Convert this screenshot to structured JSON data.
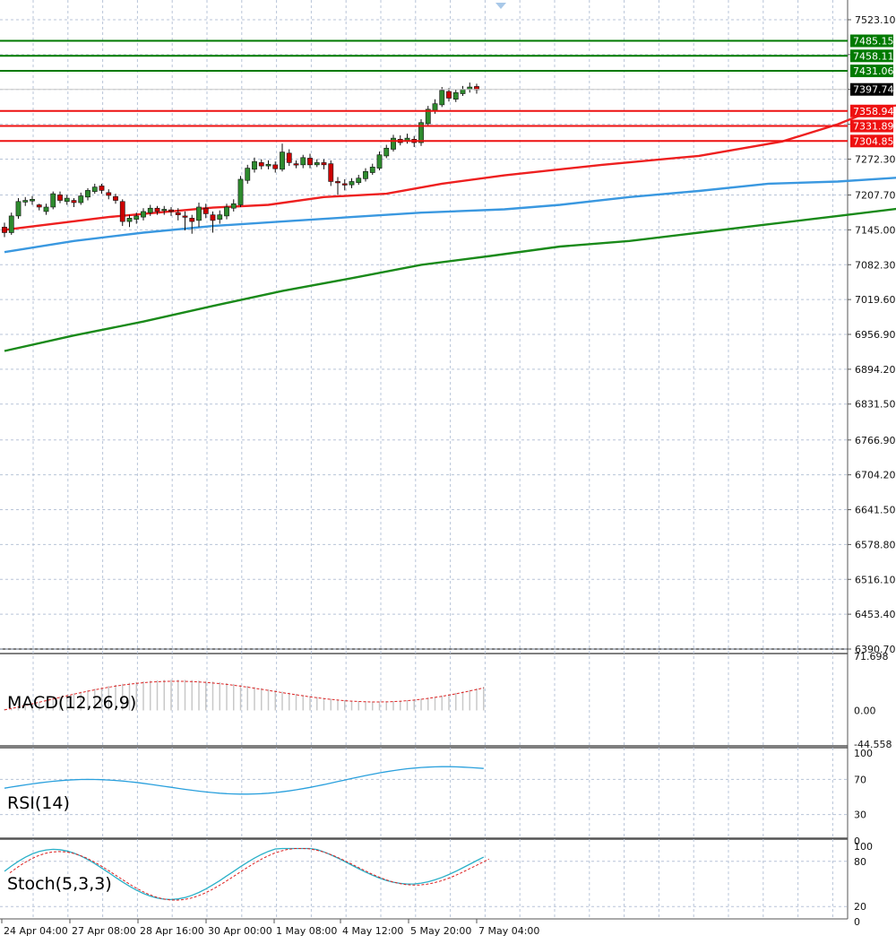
{
  "chart_data": [
    {
      "id": "price",
      "type": "candlestick",
      "y_ticks": [
        "7523.10",
        "7460.40",
        "7397.74",
        "7335.00",
        "7272.30",
        "7207.70",
        "7145.00",
        "7082.30",
        "7019.60",
        "6956.90",
        "6894.20",
        "6831.50",
        "6766.90",
        "6704.20",
        "6641.50",
        "6578.80",
        "6516.10",
        "6453.40",
        "6390.70"
      ],
      "ylim": [
        6390.7,
        7523.1
      ],
      "current_price": 7397.74,
      "resistance_levels": [
        7485.15,
        7458.11,
        7431.06
      ],
      "support_levels": [
        7358.94,
        7331.89,
        7304.85
      ],
      "resistance_labels": [
        "7485.15",
        "7458.11",
        "7431.06"
      ],
      "support_labels": [
        "7358.94",
        "7331.89",
        "7304.85"
      ],
      "current_price_label": "7397.74",
      "candles": [
        [
          7150,
          7140,
          7158,
          7132
        ],
        [
          7140,
          7170,
          7176,
          7136
        ],
        [
          7170,
          7196,
          7202,
          7165
        ],
        [
          7195,
          7198,
          7204,
          7188
        ],
        [
          7197,
          7200,
          7206,
          7190
        ],
        [
          7190,
          7186,
          7192,
          7180
        ],
        [
          7178,
          7186,
          7192,
          7172
        ],
        [
          7186,
          7210,
          7214,
          7182
        ],
        [
          7208,
          7198,
          7214,
          7193
        ],
        [
          7196,
          7202,
          7208,
          7190
        ],
        [
          7198,
          7194,
          7202,
          7186
        ],
        [
          7194,
          7206,
          7212,
          7190
        ],
        [
          7204,
          7216,
          7220,
          7198
        ],
        [
          7214,
          7222,
          7228,
          7210
        ],
        [
          7224,
          7216,
          7228,
          7210
        ],
        [
          7212,
          7207,
          7218,
          7200
        ],
        [
          7205,
          7198,
          7210,
          7192
        ],
        [
          7196,
          7160,
          7200,
          7152
        ],
        [
          7160,
          7166,
          7172,
          7150
        ],
        [
          7164,
          7170,
          7176,
          7156
        ],
        [
          7168,
          7178,
          7184,
          7162
        ],
        [
          7176,
          7184,
          7190,
          7170
        ],
        [
          7184,
          7178,
          7188,
          7172
        ],
        [
          7180,
          7182,
          7188,
          7172
        ],
        [
          7181,
          7178,
          7186,
          7170
        ],
        [
          7176,
          7172,
          7184,
          7162
        ],
        [
          7170,
          7168,
          7178,
          7144
        ],
        [
          7166,
          7160,
          7172,
          7138
        ],
        [
          7162,
          7186,
          7194,
          7150
        ],
        [
          7184,
          7174,
          7192,
          7166
        ],
        [
          7172,
          7162,
          7178,
          7140
        ],
        [
          7164,
          7172,
          7180,
          7156
        ],
        [
          7170,
          7186,
          7192,
          7164
        ],
        [
          7184,
          7192,
          7200,
          7178
        ],
        [
          7190,
          7236,
          7242,
          7186
        ],
        [
          7234,
          7256,
          7262,
          7228
        ],
        [
          7254,
          7268,
          7275,
          7248
        ],
        [
          7266,
          7260,
          7272,
          7254
        ],
        [
          7260,
          7263,
          7270,
          7254
        ],
        [
          7262,
          7255,
          7268,
          7248
        ],
        [
          7254,
          7285,
          7300,
          7250
        ],
        [
          7283,
          7266,
          7290,
          7260
        ],
        [
          7264,
          7262,
          7270,
          7256
        ],
        [
          7262,
          7275,
          7280,
          7256
        ],
        [
          7274,
          7262,
          7282,
          7256
        ],
        [
          7262,
          7266,
          7272,
          7258
        ],
        [
          7266,
          7262,
          7272,
          7254
        ],
        [
          7264,
          7232,
          7270,
          7224
        ],
        [
          7232,
          7230,
          7240,
          7208
        ],
        [
          7228,
          7226,
          7236,
          7216
        ],
        [
          7226,
          7232,
          7238,
          7220
        ],
        [
          7230,
          7238,
          7244,
          7226
        ],
        [
          7237,
          7250,
          7256,
          7232
        ],
        [
          7248,
          7258,
          7264,
          7244
        ],
        [
          7256,
          7280,
          7286,
          7252
        ],
        [
          7278,
          7292,
          7298,
          7274
        ],
        [
          7290,
          7310,
          7316,
          7286
        ],
        [
          7308,
          7302,
          7315,
          7297
        ],
        [
          7304,
          7310,
          7318,
          7300
        ],
        [
          7308,
          7302,
          7314,
          7294
        ],
        [
          7302,
          7338,
          7344,
          7296
        ],
        [
          7336,
          7362,
          7368,
          7332
        ],
        [
          7360,
          7372,
          7380,
          7354
        ],
        [
          7370,
          7396,
          7402,
          7366
        ],
        [
          7394,
          7382,
          7400,
          7376
        ],
        [
          7380,
          7392,
          7398,
          7375
        ],
        [
          7390,
          7398,
          7404,
          7386
        ],
        [
          7398,
          7402,
          7410,
          7392
        ],
        [
          7403,
          7397,
          7408,
          7390
        ]
      ],
      "ma_red": [
        [
          0,
          7145
        ],
        [
          15,
          7168
        ],
        [
          30,
          7185
        ],
        [
          38,
          7190
        ],
        [
          46,
          7204
        ],
        [
          55,
          7210
        ],
        [
          63,
          7228
        ],
        [
          72,
          7243
        ],
        [
          86,
          7262
        ],
        [
          100,
          7278
        ],
        [
          112,
          7304
        ],
        [
          120,
          7335
        ],
        [
          124,
          7355
        ],
        [
          128,
          7368
        ],
        [
          134,
          7378
        ],
        [
          140,
          7398
        ],
        [
          150,
          7422
        ],
        [
          158,
          7441
        ],
        [
          164,
          7462
        ],
        [
          168,
          7478
        ],
        [
          173,
          7489
        ]
      ],
      "ma_blue": [
        [
          0,
          7105
        ],
        [
          10,
          7125
        ],
        [
          20,
          7140
        ],
        [
          30,
          7152
        ],
        [
          40,
          7160
        ],
        [
          50,
          7168
        ],
        [
          60,
          7176
        ],
        [
          72,
          7182
        ],
        [
          80,
          7190
        ],
        [
          90,
          7204
        ],
        [
          100,
          7215
        ],
        [
          110,
          7228
        ],
        [
          120,
          7232
        ],
        [
          130,
          7240
        ],
        [
          140,
          7252
        ],
        [
          150,
          7270
        ],
        [
          160,
          7290
        ],
        [
          168,
          7304
        ],
        [
          173,
          7310
        ]
      ],
      "ma_green": [
        [
          0,
          6927
        ],
        [
          10,
          6955
        ],
        [
          20,
          6980
        ],
        [
          30,
          7008
        ],
        [
          40,
          7035
        ],
        [
          50,
          7058
        ],
        [
          60,
          7082
        ],
        [
          70,
          7098
        ],
        [
          80,
          7115
        ],
        [
          90,
          7125
        ],
        [
          100,
          7140
        ],
        [
          110,
          7155
        ],
        [
          120,
          7170
        ],
        [
          130,
          7185
        ],
        [
          140,
          7205
        ],
        [
          150,
          7225
        ],
        [
          160,
          7242
        ],
        [
          168,
          7258
        ],
        [
          173,
          7266
        ]
      ]
    },
    {
      "id": "macd",
      "type": "bar",
      "label": "MACD(12,26,9)",
      "y_ticks": [
        "71.698",
        "0.00",
        "-44.558"
      ],
      "ylim": [
        -44.558,
        71.698
      ]
    },
    {
      "id": "rsi",
      "type": "line",
      "label": "RSI(14)",
      "y_ticks": [
        "100",
        "70",
        "30",
        "0"
      ],
      "ylim": [
        0,
        100
      ]
    },
    {
      "id": "stoch",
      "type": "line",
      "label": "Stoch(5,3,3)",
      "y_ticks": [
        "100",
        "80",
        "20",
        "0"
      ],
      "ylim": [
        0,
        100
      ]
    }
  ],
  "x_axis": {
    "labels": [
      "24 Apr 04:00",
      "27 Apr 08:00",
      "28 Apr 16:00",
      "30 Apr 00:00",
      "1 May 08:00",
      "4 May 12:00",
      "5 May 20:00",
      "7 May 04:00"
    ]
  },
  "colors": {
    "bull": "#2e8b2e",
    "bear": "#cc0000",
    "ma_red": "#ee2020",
    "ma_blue": "#3a98e0",
    "ma_green": "#1a8a1a",
    "resistance": "#007a00",
    "support": "#ee1111",
    "grid": "#b8c4d8",
    "macd_hist": "#c8c8c8",
    "macd_signal": "#dd2222",
    "rsi_line": "#2aa0dd",
    "stoch_main": "#2ab0c8",
    "stoch_signal": "#dd2222"
  }
}
